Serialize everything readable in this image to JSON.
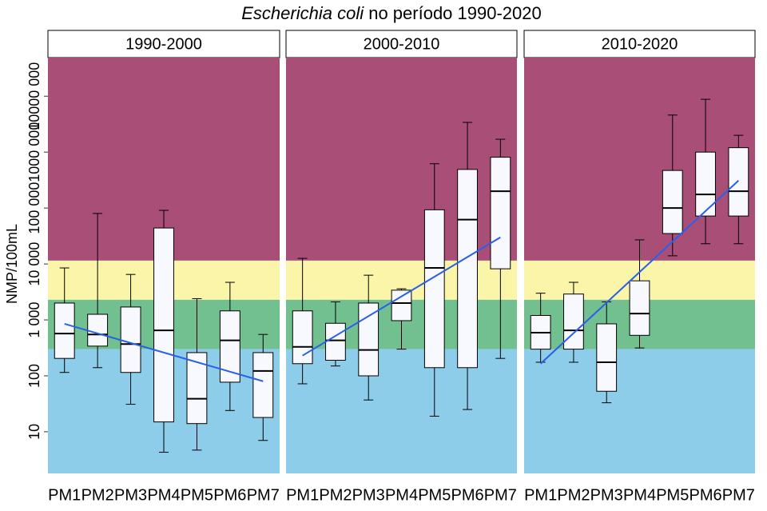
{
  "chart_data": {
    "type": "box",
    "title_italic": "Escherichia coli",
    "title_rest": "no período 1990-2020",
    "y_label": "NMP/100mL",
    "log_y": true,
    "categories": [
      "PM1",
      "PM2",
      "PM3",
      "PM4",
      "PM5",
      "PM6",
      "PM7"
    ],
    "ylim": [
      1.8,
      49000000
    ],
    "yticks": [
      10,
      100,
      {
        "value": 1000,
        "label": "1 000"
      },
      {
        "value": 10000,
        "label": "10 000"
      },
      {
        "value": 100000,
        "label": "100 000"
      },
      {
        "value": 1000000,
        "label": "1000 000"
      },
      {
        "value": 10000000,
        "label": "10000 000"
      }
    ],
    "bands": [
      {
        "to": 300,
        "color": "#8ecdea"
      },
      {
        "to": 2300,
        "color": "#72c08f"
      },
      {
        "to": 11500,
        "color": "#fbf5a9"
      },
      {
        "to": 49000000,
        "color": "#a94f77"
      }
    ],
    "box_fill": "#f8f8ff",
    "trend_color": "#2a5fe8",
    "facets": [
      {
        "name": "1990-2000",
        "whisker_low": [
          115,
          140,
          31,
          4.3,
          4.7,
          24,
          7
        ],
        "q1": [
          205,
          340,
          115,
          15,
          14,
          77,
          18
        ],
        "median": [
          570,
          550,
          370,
          650,
          39,
          430,
          122
        ],
        "q3": [
          2000,
          1260,
          1700,
          44000,
          260,
          1450,
          260
        ],
        "whisker_high": [
          8500,
          80000,
          6500,
          91000,
          2400,
          4700,
          550
        ],
        "trend": [
          850,
          80
        ]
      },
      {
        "name": "2000-2010",
        "whisker_low": [
          72,
          150,
          37,
          300,
          19,
          25,
          205
        ],
        "q1": [
          165,
          190,
          100,
          970,
          140,
          140,
          8200
        ],
        "median": [
          330,
          430,
          290,
          2000,
          8500,
          62000,
          200000
        ],
        "q3": [
          1450,
          870,
          2000,
          3400,
          93000,
          490000,
          810000
        ],
        "whisker_high": [
          12600,
          2100,
          6300,
          3600,
          620000,
          3400000,
          1700000
        ],
        "trend": [
          230,
          30000
        ]
      },
      {
        "name": "2010-2020",
        "whisker_low": [
          175,
          175,
          33,
          315,
          14000,
          23000,
          23000
        ],
        "q1": [
          300,
          300,
          53,
          530,
          35000,
          72000,
          72000
        ],
        "median": [
          590,
          650,
          175,
          1300,
          100000,
          175000,
          200000
        ],
        "q3": [
          1200,
          2900,
          850,
          5000,
          470000,
          1000000,
          1200000
        ],
        "whisker_high": [
          3000,
          4700,
          2100,
          27000,
          4600000,
          8800000,
          2000000
        ],
        "trend": [
          165,
          310000
        ]
      }
    ]
  }
}
